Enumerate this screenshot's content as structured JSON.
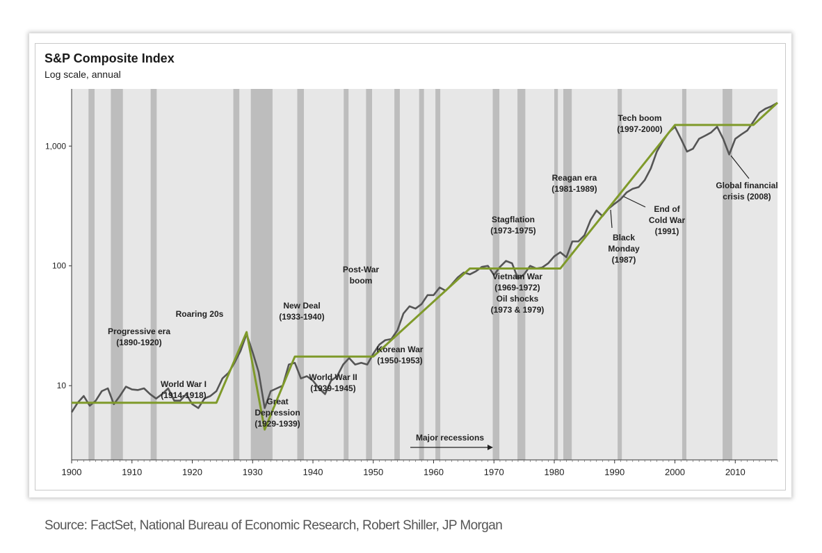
{
  "chart_data": {
    "type": "line",
    "title": "S&P Composite Index",
    "subtitle": "Log scale, annual",
    "y_scale": "log",
    "xlim": [
      1900,
      2017
    ],
    "ylim": [
      2.4,
      3000
    ],
    "x_ticks": [
      1900,
      1910,
      1920,
      1930,
      1940,
      1950,
      1960,
      1970,
      1980,
      1990,
      2000,
      2010
    ],
    "y_ticks": [
      {
        "value": 10,
        "label": "10"
      },
      {
        "value": 100,
        "label": "100"
      },
      {
        "value": 1000,
        "label": "1,000"
      }
    ],
    "grid": false,
    "background_color": "#e7e7e7",
    "recession_color": "#bdbdbd",
    "index_line_color": "#555555",
    "trend_line_color": "#7f9a2a",
    "recessions": [
      [
        1902.8,
        1903.8
      ],
      [
        1906.5,
        1908.5
      ],
      [
        1913.1,
        1914.1
      ],
      [
        1926.8,
        1927.8
      ],
      [
        1929.7,
        1933.3
      ],
      [
        1937.4,
        1938.5
      ],
      [
        1945.1,
        1945.9
      ],
      [
        1948.8,
        1949.8
      ],
      [
        1953.5,
        1954.4
      ],
      [
        1957.6,
        1958.4
      ],
      [
        1960.3,
        1961.1
      ],
      [
        1969.8,
        1970.9
      ],
      [
        1973.9,
        1975.2
      ],
      [
        1980.0,
        1980.6
      ],
      [
        1981.5,
        1982.9
      ],
      [
        1990.5,
        1991.2
      ],
      [
        2001.2,
        2001.9
      ],
      [
        2007.9,
        2009.5
      ]
    ],
    "series": [
      {
        "type": "line",
        "x": [
          1900,
          1901,
          1902,
          1903,
          1904,
          1905,
          1906,
          1907,
          1908,
          1909,
          1910,
          1911,
          1912,
          1913,
          1914,
          1915,
          1916,
          1917,
          1918,
          1919,
          1920,
          1921,
          1922,
          1923,
          1924,
          1925,
          1926,
          1927,
          1928,
          1929,
          1930,
          1931,
          1932,
          1933,
          1934,
          1935,
          1936,
          1937,
          1938,
          1939,
          1940,
          1941,
          1942,
          1943,
          1944,
          1945,
          1946,
          1947,
          1948,
          1949,
          1950,
          1951,
          1952,
          1953,
          1954,
          1955,
          1956,
          1957,
          1958,
          1959,
          1960,
          1961,
          1962,
          1963,
          1964,
          1965,
          1966,
          1967,
          1968,
          1969,
          1970,
          1971,
          1972,
          1973,
          1974,
          1975,
          1976,
          1977,
          1978,
          1979,
          1980,
          1981,
          1982,
          1983,
          1984,
          1985,
          1986,
          1987,
          1988,
          1989,
          1990,
          1991,
          1992,
          1993,
          1994,
          1995,
          1996,
          1997,
          1998,
          1999,
          2000,
          2001,
          2002,
          2003,
          2004,
          2005,
          2006,
          2007,
          2008,
          2009,
          2010,
          2011,
          2012,
          2013,
          2014,
          2015,
          2016,
          2017
        ],
        "values": [
          6.0,
          7.2,
          8.2,
          6.8,
          7.5,
          9.0,
          9.5,
          7.0,
          8.2,
          9.8,
          9.3,
          9.2,
          9.5,
          8.5,
          7.8,
          8.5,
          9.5,
          7.5,
          7.5,
          8.5,
          7.0,
          6.5,
          7.8,
          8.2,
          9.0,
          11.5,
          12.8,
          15.5,
          19.5,
          27,
          19,
          13,
          6.5,
          9.0,
          9.5,
          10,
          15,
          15.5,
          11.5,
          12,
          11,
          9.5,
          8.5,
          11,
          12,
          15,
          17,
          15,
          15.5,
          15,
          18.5,
          22,
          24,
          24.5,
          29,
          40,
          46,
          44,
          48,
          57,
          57,
          66,
          62,
          70,
          80,
          88,
          85,
          90,
          98,
          100,
          84,
          98,
          110,
          105,
          78,
          85,
          100,
          95,
          97,
          105,
          120,
          130,
          118,
          160,
          160,
          180,
          240,
          290,
          260,
          300,
          330,
          360,
          410,
          440,
          455,
          520,
          650,
          900,
          1100,
          1300,
          1450,
          1150,
          900,
          950,
          1150,
          1220,
          1300,
          1450,
          1150,
          850,
          1150,
          1250,
          1350,
          1600,
          1900,
          2050,
          2150,
          2300
        ]
      },
      {
        "type": "trend",
        "x": [
          1900,
          1924,
          1929,
          1932,
          1937,
          1950,
          1966,
          1981,
          2000,
          2013,
          2017
        ],
        "values": [
          7.2,
          7.2,
          28,
          4.3,
          17.5,
          17.5,
          95,
          95,
          1500,
          1500,
          2300
        ]
      }
    ],
    "annotations": [
      {
        "lines": [
          "Progressive era",
          "(1890-1920)"
        ]
      },
      {
        "lines": [
          "World War I",
          "(1914-1918)"
        ]
      },
      {
        "lines": [
          "Roaring 20s"
        ]
      },
      {
        "lines": [
          "Great",
          "Depression",
          "(1929-1939)"
        ]
      },
      {
        "lines": [
          "New Deal",
          "(1933-1940)"
        ]
      },
      {
        "lines": [
          "World War II",
          "(1939-1945)"
        ]
      },
      {
        "lines": [
          "Post-War",
          "boom"
        ]
      },
      {
        "lines": [
          "Korean War",
          "(1950-1953)"
        ]
      },
      {
        "lines": [
          "Stagflation",
          "(1973-1975)"
        ]
      },
      {
        "lines": [
          "Vietnam War",
          "(1969-1972)",
          "Oil shocks",
          "(1973 & 1979)"
        ]
      },
      {
        "lines": [
          "Reagan era",
          "(1981-1989)"
        ]
      },
      {
        "lines": [
          "Black",
          "Monday",
          "(1987)"
        ]
      },
      {
        "lines": [
          "End of",
          "Cold War",
          "(1991)"
        ]
      },
      {
        "lines": [
          "Tech boom",
          "(1997-2000)"
        ]
      },
      {
        "lines": [
          "Global financial",
          "crisis (2008)"
        ]
      },
      {
        "lines": [
          "Major recessions"
        ]
      }
    ]
  },
  "source": "Source: FactSet, National Bureau of Economic Research, Robert Shiller, JP Morgan"
}
